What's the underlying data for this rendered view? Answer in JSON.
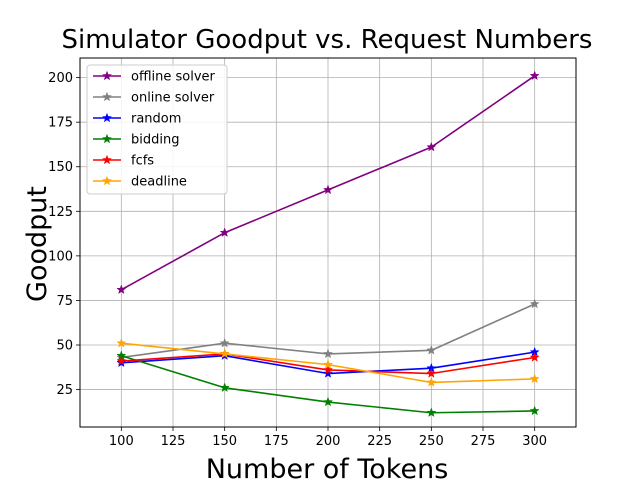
{
  "chart_data": {
    "type": "line",
    "title": "Simulator Goodput vs. Request Numbers",
    "xlabel": "Number of Tokens",
    "ylabel": "Goodput",
    "x": [
      100,
      150,
      200,
      250,
      300
    ],
    "xlim": [
      80,
      320
    ],
    "ylim": [
      4,
      211
    ],
    "xticks": [
      100,
      125,
      150,
      175,
      200,
      225,
      250,
      275,
      300
    ],
    "yticks": [
      25,
      50,
      75,
      100,
      125,
      150,
      175,
      200
    ],
    "grid": true,
    "legend_position": "top-left",
    "marker": "star",
    "series": [
      {
        "name": "offline solver",
        "color": "#800080",
        "values": [
          81,
          113,
          137,
          161,
          201
        ]
      },
      {
        "name": "online solver",
        "color": "#808080",
        "values": [
          43,
          51,
          45,
          47,
          73
        ]
      },
      {
        "name": "random",
        "color": "#0000ff",
        "values": [
          40,
          44,
          34,
          37,
          46
        ]
      },
      {
        "name": "bidding",
        "color": "#008000",
        "values": [
          44,
          26,
          18,
          12,
          13
        ]
      },
      {
        "name": "fcfs",
        "color": "#ff0000",
        "values": [
          41,
          45,
          36,
          34,
          43
        ]
      },
      {
        "name": "deadline",
        "color": "#ffa500",
        "values": [
          51,
          45,
          39,
          29,
          31
        ]
      }
    ]
  }
}
